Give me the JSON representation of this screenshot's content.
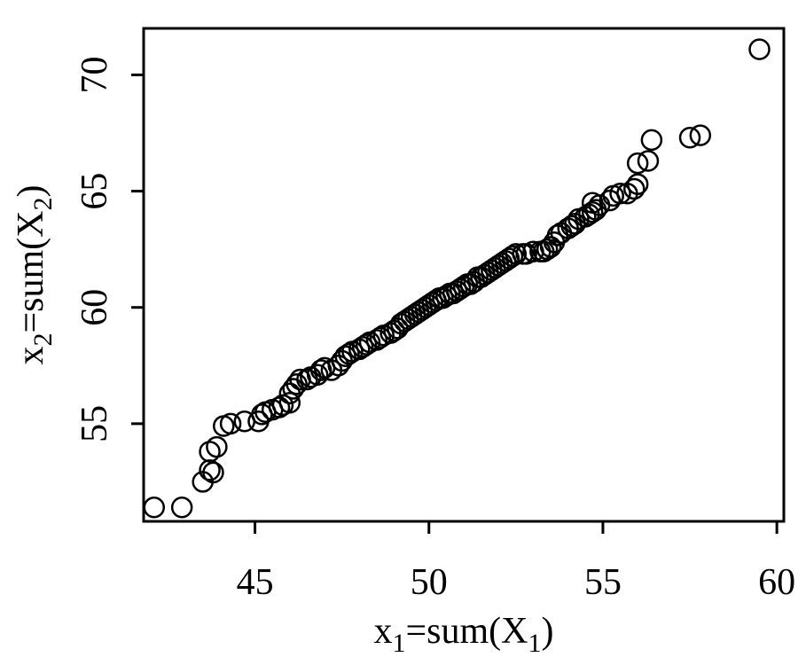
{
  "chart_data": {
    "type": "scatter",
    "title": "",
    "xlabel": {
      "base": "x",
      "sub": "1",
      "mid": "=sum(X",
      "sub2": "1",
      "end": ")"
    },
    "ylabel": {
      "base": "x",
      "sub": "2",
      "mid": "=sum(X",
      "sub2": "2",
      "end": ")"
    },
    "xlim": [
      41.8,
      60.2
    ],
    "ylim": [
      50.8,
      72.0
    ],
    "xticks": [
      45,
      50,
      55,
      60
    ],
    "yticks": [
      55,
      60,
      65,
      70
    ],
    "grid": false,
    "legend": "none",
    "marker": "open-circle",
    "series": [
      {
        "points": [
          [
            42.1,
            51.4
          ],
          [
            42.9,
            51.4
          ],
          [
            43.5,
            52.5
          ],
          [
            43.7,
            53.0
          ],
          [
            43.8,
            52.9
          ],
          [
            43.7,
            53.8
          ],
          [
            43.9,
            54.0
          ],
          [
            44.1,
            54.9
          ],
          [
            44.3,
            55.0
          ],
          [
            44.7,
            55.1
          ],
          [
            45.1,
            55.1
          ],
          [
            45.2,
            55.4
          ],
          [
            45.3,
            55.5
          ],
          [
            45.5,
            55.6
          ],
          [
            45.7,
            55.7
          ],
          [
            45.8,
            55.8
          ],
          [
            46.0,
            55.9
          ],
          [
            46.0,
            56.3
          ],
          [
            46.1,
            56.5
          ],
          [
            46.2,
            56.7
          ],
          [
            46.3,
            56.9
          ],
          [
            46.5,
            56.9
          ],
          [
            46.6,
            57.0
          ],
          [
            46.8,
            57.1
          ],
          [
            46.9,
            57.3
          ],
          [
            47.0,
            57.4
          ],
          [
            47.2,
            57.3
          ],
          [
            47.4,
            57.5
          ],
          [
            47.5,
            57.7
          ],
          [
            47.6,
            57.9
          ],
          [
            47.7,
            58.0
          ],
          [
            47.8,
            58.1
          ],
          [
            48.0,
            58.2
          ],
          [
            48.1,
            58.3
          ],
          [
            48.2,
            58.4
          ],
          [
            48.3,
            58.5
          ],
          [
            48.5,
            58.6
          ],
          [
            48.6,
            58.7
          ],
          [
            48.7,
            58.8
          ],
          [
            48.9,
            58.9
          ],
          [
            49.0,
            59.0
          ],
          [
            49.1,
            59.1
          ],
          [
            49.2,
            59.3
          ],
          [
            49.3,
            59.4
          ],
          [
            49.4,
            59.5
          ],
          [
            49.5,
            59.6
          ],
          [
            49.6,
            59.7
          ],
          [
            49.7,
            59.8
          ],
          [
            49.8,
            59.9
          ],
          [
            49.9,
            60.0
          ],
          [
            50.0,
            60.1
          ],
          [
            50.1,
            60.2
          ],
          [
            50.2,
            60.3
          ],
          [
            50.3,
            60.4
          ],
          [
            50.4,
            60.4
          ],
          [
            50.5,
            60.5
          ],
          [
            50.6,
            60.6
          ],
          [
            50.7,
            60.6
          ],
          [
            50.8,
            60.7
          ],
          [
            50.9,
            60.8
          ],
          [
            51.0,
            60.9
          ],
          [
            51.1,
            61.0
          ],
          [
            51.2,
            61.0
          ],
          [
            51.3,
            61.1
          ],
          [
            51.4,
            61.3
          ],
          [
            51.5,
            61.3
          ],
          [
            51.6,
            61.4
          ],
          [
            51.7,
            61.5
          ],
          [
            51.8,
            61.6
          ],
          [
            51.9,
            61.7
          ],
          [
            52.0,
            61.8
          ],
          [
            52.1,
            61.9
          ],
          [
            52.2,
            62.0
          ],
          [
            52.3,
            62.1
          ],
          [
            52.4,
            62.2
          ],
          [
            52.5,
            62.3
          ],
          [
            52.7,
            62.3
          ],
          [
            52.8,
            62.3
          ],
          [
            53.0,
            62.4
          ],
          [
            53.2,
            62.4
          ],
          [
            53.3,
            62.4
          ],
          [
            53.4,
            62.5
          ],
          [
            53.5,
            62.6
          ],
          [
            53.6,
            62.8
          ],
          [
            53.7,
            63.1
          ],
          [
            53.8,
            63.2
          ],
          [
            54.0,
            63.4
          ],
          [
            54.1,
            63.5
          ],
          [
            54.2,
            63.6
          ],
          [
            54.3,
            63.8
          ],
          [
            54.5,
            63.9
          ],
          [
            54.6,
            64.0
          ],
          [
            54.7,
            64.1
          ],
          [
            54.8,
            64.2
          ],
          [
            54.9,
            64.4
          ],
          [
            54.7,
            64.5
          ],
          [
            55.2,
            64.6
          ],
          [
            55.3,
            64.8
          ],
          [
            55.5,
            64.9
          ],
          [
            55.7,
            64.9
          ],
          [
            55.9,
            65.1
          ],
          [
            56.0,
            65.3
          ],
          [
            56.0,
            66.2
          ],
          [
            56.3,
            66.3
          ],
          [
            56.4,
            67.2
          ],
          [
            57.5,
            67.3
          ],
          [
            57.8,
            67.4
          ],
          [
            59.5,
            71.1
          ]
        ]
      }
    ]
  }
}
